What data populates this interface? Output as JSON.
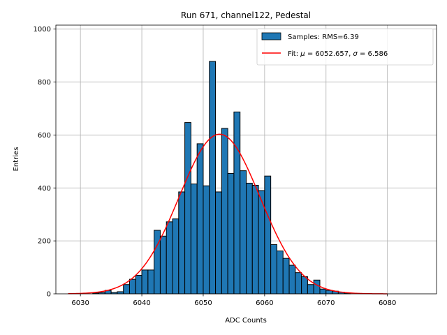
{
  "chart_data": {
    "type": "bar",
    "title": "Run 671, channel122, Pedestal",
    "xlabel": "ADC Counts",
    "ylabel": "Entries",
    "xlim": [
      6026,
      6088
    ],
    "ylim": [
      0,
      1015
    ],
    "xticks": [
      6030,
      6040,
      6050,
      6060,
      6070,
      6080
    ],
    "yticks": [
      0,
      200,
      400,
      600,
      800,
      1000
    ],
    "grid": true,
    "legend_position": "top-right",
    "histogram": {
      "name": "Samples: RMS=6.39",
      "color": "#1f77b4",
      "edgecolor": "#000000",
      "bin_start": 6030,
      "bin_width": 1,
      "counts": [
        0,
        0,
        3,
        5,
        13,
        5,
        8,
        35,
        55,
        70,
        90,
        90,
        240,
        218,
        272,
        283,
        385,
        647,
        415,
        567,
        408,
        878,
        385,
        625,
        455,
        687,
        465,
        418,
        410,
        390,
        445,
        186,
        162,
        134,
        108,
        80,
        65,
        35,
        52,
        18,
        13,
        10,
        6,
        3
      ]
    },
    "fit": {
      "name": "Fit: $\\mu$ = 6052.657, $\\sigma$ = 6.586",
      "label_prefix": "Fit: ",
      "mu_symbol": "μ",
      "mu_text": " = 6052.657, ",
      "sigma_symbol": "σ",
      "sigma_text": " = 6.586",
      "color": "#ff0000",
      "mu": 6052.657,
      "sigma": 6.586,
      "amplitude": 603,
      "x_range": [
        6028,
        6080
      ]
    }
  }
}
